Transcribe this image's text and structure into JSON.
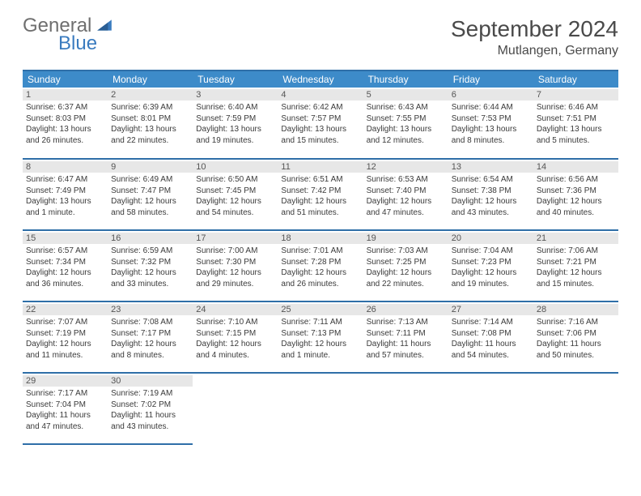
{
  "logo": {
    "general": "General",
    "blue": "Blue"
  },
  "title": "September 2024",
  "location": "Mutlangen, Germany",
  "columns": [
    "Sunday",
    "Monday",
    "Tuesday",
    "Wednesday",
    "Thursday",
    "Friday",
    "Saturday"
  ],
  "colors": {
    "header_bg": "#3d8bc9",
    "header_text": "#ffffff",
    "rule": "#2f6fa8",
    "daynum_bg": "#e7e7e7",
    "text": "#3a3a3a",
    "logo_gray": "#6f6f6f",
    "logo_blue": "#3a7bbf"
  },
  "weeks": [
    [
      {
        "n": "1",
        "sr": "Sunrise: 6:37 AM",
        "ss": "Sunset: 8:03 PM",
        "d1": "Daylight: 13 hours",
        "d2": "and 26 minutes."
      },
      {
        "n": "2",
        "sr": "Sunrise: 6:39 AM",
        "ss": "Sunset: 8:01 PM",
        "d1": "Daylight: 13 hours",
        "d2": "and 22 minutes."
      },
      {
        "n": "3",
        "sr": "Sunrise: 6:40 AM",
        "ss": "Sunset: 7:59 PM",
        "d1": "Daylight: 13 hours",
        "d2": "and 19 minutes."
      },
      {
        "n": "4",
        "sr": "Sunrise: 6:42 AM",
        "ss": "Sunset: 7:57 PM",
        "d1": "Daylight: 13 hours",
        "d2": "and 15 minutes."
      },
      {
        "n": "5",
        "sr": "Sunrise: 6:43 AM",
        "ss": "Sunset: 7:55 PM",
        "d1": "Daylight: 13 hours",
        "d2": "and 12 minutes."
      },
      {
        "n": "6",
        "sr": "Sunrise: 6:44 AM",
        "ss": "Sunset: 7:53 PM",
        "d1": "Daylight: 13 hours",
        "d2": "and 8 minutes."
      },
      {
        "n": "7",
        "sr": "Sunrise: 6:46 AM",
        "ss": "Sunset: 7:51 PM",
        "d1": "Daylight: 13 hours",
        "d2": "and 5 minutes."
      }
    ],
    [
      {
        "n": "8",
        "sr": "Sunrise: 6:47 AM",
        "ss": "Sunset: 7:49 PM",
        "d1": "Daylight: 13 hours",
        "d2": "and 1 minute."
      },
      {
        "n": "9",
        "sr": "Sunrise: 6:49 AM",
        "ss": "Sunset: 7:47 PM",
        "d1": "Daylight: 12 hours",
        "d2": "and 58 minutes."
      },
      {
        "n": "10",
        "sr": "Sunrise: 6:50 AM",
        "ss": "Sunset: 7:45 PM",
        "d1": "Daylight: 12 hours",
        "d2": "and 54 minutes."
      },
      {
        "n": "11",
        "sr": "Sunrise: 6:51 AM",
        "ss": "Sunset: 7:42 PM",
        "d1": "Daylight: 12 hours",
        "d2": "and 51 minutes."
      },
      {
        "n": "12",
        "sr": "Sunrise: 6:53 AM",
        "ss": "Sunset: 7:40 PM",
        "d1": "Daylight: 12 hours",
        "d2": "and 47 minutes."
      },
      {
        "n": "13",
        "sr": "Sunrise: 6:54 AM",
        "ss": "Sunset: 7:38 PM",
        "d1": "Daylight: 12 hours",
        "d2": "and 43 minutes."
      },
      {
        "n": "14",
        "sr": "Sunrise: 6:56 AM",
        "ss": "Sunset: 7:36 PM",
        "d1": "Daylight: 12 hours",
        "d2": "and 40 minutes."
      }
    ],
    [
      {
        "n": "15",
        "sr": "Sunrise: 6:57 AM",
        "ss": "Sunset: 7:34 PM",
        "d1": "Daylight: 12 hours",
        "d2": "and 36 minutes."
      },
      {
        "n": "16",
        "sr": "Sunrise: 6:59 AM",
        "ss": "Sunset: 7:32 PM",
        "d1": "Daylight: 12 hours",
        "d2": "and 33 minutes."
      },
      {
        "n": "17",
        "sr": "Sunrise: 7:00 AM",
        "ss": "Sunset: 7:30 PM",
        "d1": "Daylight: 12 hours",
        "d2": "and 29 minutes."
      },
      {
        "n": "18",
        "sr": "Sunrise: 7:01 AM",
        "ss": "Sunset: 7:28 PM",
        "d1": "Daylight: 12 hours",
        "d2": "and 26 minutes."
      },
      {
        "n": "19",
        "sr": "Sunrise: 7:03 AM",
        "ss": "Sunset: 7:25 PM",
        "d1": "Daylight: 12 hours",
        "d2": "and 22 minutes."
      },
      {
        "n": "20",
        "sr": "Sunrise: 7:04 AM",
        "ss": "Sunset: 7:23 PM",
        "d1": "Daylight: 12 hours",
        "d2": "and 19 minutes."
      },
      {
        "n": "21",
        "sr": "Sunrise: 7:06 AM",
        "ss": "Sunset: 7:21 PM",
        "d1": "Daylight: 12 hours",
        "d2": "and 15 minutes."
      }
    ],
    [
      {
        "n": "22",
        "sr": "Sunrise: 7:07 AM",
        "ss": "Sunset: 7:19 PM",
        "d1": "Daylight: 12 hours",
        "d2": "and 11 minutes."
      },
      {
        "n": "23",
        "sr": "Sunrise: 7:08 AM",
        "ss": "Sunset: 7:17 PM",
        "d1": "Daylight: 12 hours",
        "d2": "and 8 minutes."
      },
      {
        "n": "24",
        "sr": "Sunrise: 7:10 AM",
        "ss": "Sunset: 7:15 PM",
        "d1": "Daylight: 12 hours",
        "d2": "and 4 minutes."
      },
      {
        "n": "25",
        "sr": "Sunrise: 7:11 AM",
        "ss": "Sunset: 7:13 PM",
        "d1": "Daylight: 12 hours",
        "d2": "and 1 minute."
      },
      {
        "n": "26",
        "sr": "Sunrise: 7:13 AM",
        "ss": "Sunset: 7:11 PM",
        "d1": "Daylight: 11 hours",
        "d2": "and 57 minutes."
      },
      {
        "n": "27",
        "sr": "Sunrise: 7:14 AM",
        "ss": "Sunset: 7:08 PM",
        "d1": "Daylight: 11 hours",
        "d2": "and 54 minutes."
      },
      {
        "n": "28",
        "sr": "Sunrise: 7:16 AM",
        "ss": "Sunset: 7:06 PM",
        "d1": "Daylight: 11 hours",
        "d2": "and 50 minutes."
      }
    ],
    [
      {
        "n": "29",
        "sr": "Sunrise: 7:17 AM",
        "ss": "Sunset: 7:04 PM",
        "d1": "Daylight: 11 hours",
        "d2": "and 47 minutes."
      },
      {
        "n": "30",
        "sr": "Sunrise: 7:19 AM",
        "ss": "Sunset: 7:02 PM",
        "d1": "Daylight: 11 hours",
        "d2": "and 43 minutes."
      },
      null,
      null,
      null,
      null,
      null
    ]
  ]
}
